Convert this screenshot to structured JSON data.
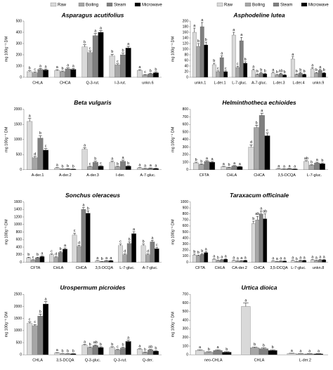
{
  "chart_data": [
    {
      "type": "bar",
      "title": "Asparagus acutifolius",
      "ylabel": "mg 100g⁻¹ DM",
      "legend": "top-right",
      "categories": [
        "CHLA",
        "CHCA",
        "Q-3-rut.",
        "I-3-rut.",
        "unkn.6"
      ],
      "ylim": [
        0,
        500
      ],
      "yticks": [
        0,
        100,
        200,
        300,
        400,
        500
      ],
      "series": [
        {
          "name": "Raw",
          "color": "#d9d9d9",
          "values": [
            50,
            60,
            270,
            190,
            60
          ],
          "errors": [
            8,
            8,
            20,
            15,
            8
          ],
          "letters": [
            "b",
            "a",
            "b",
            "b",
            "a"
          ]
        },
        {
          "name": "Boiling",
          "color": "#a6a6a6",
          "values": [
            40,
            50,
            220,
            110,
            20
          ],
          "errors": [
            6,
            6,
            15,
            10,
            4
          ],
          "letters": [
            "c",
            "b",
            "c",
            "c",
            "c"
          ]
        },
        {
          "name": "Steam",
          "color": "#7f7f7f",
          "values": [
            70,
            75,
            370,
            200,
            30
          ],
          "errors": [
            8,
            8,
            20,
            15,
            5
          ],
          "letters": [
            "a",
            "a",
            "a",
            "b",
            "b"
          ]
        },
        {
          "name": "Microwave",
          "color": "#000000",
          "values": [
            65,
            70,
            400,
            260,
            40
          ],
          "errors": [
            8,
            8,
            15,
            15,
            6
          ],
          "letters": [
            "a",
            "a",
            "a",
            "a",
            "b"
          ]
        }
      ]
    },
    {
      "type": "bar",
      "title": "Asphodeline lutea",
      "ylabel": "mg 100g⁻¹ DM",
      "legend": "top-right",
      "categories": [
        "unkn.1",
        "L-der.1",
        "L-7-gluc.",
        "A-7-gluc.",
        "L-der.3",
        "L-der.4",
        "unkn.9"
      ],
      "ylim": [
        0,
        200
      ],
      "yticks": [
        0,
        20,
        40,
        60,
        80,
        100,
        120,
        140,
        160,
        180,
        200
      ],
      "series": [
        {
          "name": "Raw",
          "color": "#d9d9d9",
          "values": [
            160,
            45,
            150,
            25,
            15,
            65,
            30
          ],
          "errors": [
            15,
            5,
            10,
            4,
            3,
            8,
            4
          ],
          "letters": [
            "a",
            "b",
            "a",
            "a",
            "a",
            "a",
            "a"
          ]
        },
        {
          "name": "Boiling",
          "color": "#a6a6a6",
          "values": [
            110,
            20,
            35,
            10,
            8,
            10,
            15
          ],
          "errors": [
            10,
            3,
            4,
            2,
            2,
            2,
            2
          ],
          "letters": [
            "b",
            "c",
            "c",
            "b",
            "b",
            "b",
            "b"
          ]
        },
        {
          "name": "Steam",
          "color": "#7f7f7f",
          "values": [
            180,
            70,
            130,
            15,
            12,
            15,
            25
          ],
          "errors": [
            15,
            6,
            12,
            3,
            2,
            3,
            3
          ],
          "letters": [
            "a",
            "a",
            "a",
            "b",
            "ab",
            "b",
            "a"
          ]
        },
        {
          "name": "Microwave",
          "color": "#000000",
          "values": [
            115,
            20,
            50,
            12,
            8,
            10,
            15
          ],
          "errors": [
            10,
            3,
            5,
            2,
            2,
            2,
            2
          ],
          "letters": [
            "b",
            "c",
            "b",
            "b",
            "b",
            "b",
            "b"
          ]
        }
      ]
    },
    {
      "type": "bar",
      "title": "Beta vulgaris",
      "ylabel": "mg 100g⁻¹ DM",
      "categories": [
        "A-der.1",
        "A-der.2",
        "A-der.3",
        "I-der.",
        "A-7-gluc."
      ],
      "ylim": [
        0,
        2000
      ],
      "yticks": [
        0,
        500,
        1000,
        1500,
        2000
      ],
      "series": [
        {
          "color": "#d9d9d9",
          "values": [
            1600,
            60,
            680,
            250,
            60
          ],
          "errors": [
            100,
            10,
            50,
            30,
            10
          ],
          "letters": [
            "a",
            "a",
            "a",
            "a",
            "a"
          ]
        },
        {
          "color": "#a6a6a6",
          "values": [
            400,
            20,
            100,
            100,
            40
          ],
          "errors": [
            40,
            5,
            15,
            15,
            8
          ],
          "letters": [
            "d",
            "b",
            "c",
            "b",
            "a"
          ]
        },
        {
          "color": "#7f7f7f",
          "values": [
            1050,
            30,
            250,
            280,
            50
          ],
          "errors": [
            80,
            8,
            30,
            40,
            10
          ],
          "letters": [
            "b",
            "b",
            "b",
            "a",
            "a"
          ]
        },
        {
          "color": "#000000",
          "values": [
            650,
            20,
            120,
            120,
            40
          ],
          "errors": [
            50,
            5,
            15,
            15,
            8
          ],
          "letters": [
            "c",
            "b",
            "c",
            "b",
            "a"
          ]
        }
      ]
    },
    {
      "type": "bar",
      "title": "Helminthotheca echioides",
      "ylabel": "mg 100g⁻¹ DM",
      "categories": [
        "CFTA",
        "CHLA",
        "CHCA",
        "3,5-DCQA",
        "L-7-gluc."
      ],
      "ylim": [
        0,
        800
      ],
      "yticks": [
        0,
        100,
        200,
        300,
        400,
        500,
        600,
        700,
        800
      ],
      "series": [
        {
          "color": "#d9d9d9",
          "values": [
            90,
            40,
            300,
            15,
            110
          ],
          "errors": [
            10,
            5,
            30,
            3,
            10
          ],
          "letters": [
            "b",
            "a",
            "d",
            "a",
            "ab"
          ]
        },
        {
          "color": "#a6a6a6",
          "values": [
            70,
            30,
            560,
            10,
            60
          ],
          "errors": [
            8,
            4,
            30,
            2,
            8
          ],
          "letters": [
            "b",
            "b",
            "b",
            "a",
            "b"
          ]
        },
        {
          "color": "#7f7f7f",
          "values": [
            110,
            50,
            720,
            15,
            90
          ],
          "errors": [
            10,
            5,
            30,
            3,
            10
          ],
          "letters": [
            "a",
            "a",
            "a",
            "a",
            "a"
          ]
        },
        {
          "color": "#000000",
          "values": [
            100,
            40,
            450,
            10,
            80
          ],
          "errors": [
            10,
            5,
            40,
            2,
            10
          ],
          "letters": [
            "a",
            "a",
            "c",
            "a",
            "b"
          ]
        }
      ]
    },
    {
      "type": "bar",
      "title": "Sonchus oleraceus",
      "ylabel": "mg 100g⁻¹ DM",
      "categories": [
        "CFTA",
        "CHLA",
        "CHCA",
        "3,5-DCQA",
        "L-7-gluc.",
        "A-7-gluc."
      ],
      "ylim": [
        0,
        1600
      ],
      "yticks": [
        0,
        200,
        400,
        600,
        800,
        1000,
        1200,
        1400,
        1600
      ],
      "series": [
        {
          "color": "#d9d9d9",
          "values": [
            120,
            200,
            720,
            40,
            440,
            440
          ],
          "errors": [
            15,
            20,
            50,
            8,
            40,
            40
          ],
          "letters": [
            "b",
            "c",
            "c",
            "a",
            "c",
            "b"
          ]
        },
        {
          "color": "#a6a6a6",
          "values": [
            60,
            130,
            420,
            20,
            200,
            200
          ],
          "errors": [
            8,
            15,
            30,
            4,
            20,
            20
          ],
          "letters": [
            "c",
            "d",
            "d",
            "b",
            "d",
            "d"
          ]
        },
        {
          "color": "#7f7f7f",
          "values": [
            120,
            260,
            1400,
            40,
            500,
            540
          ],
          "errors": [
            15,
            25,
            50,
            8,
            40,
            40
          ],
          "letters": [
            "b",
            "b",
            "a",
            "a",
            "b",
            "a"
          ]
        },
        {
          "color": "#000000",
          "values": [
            150,
            350,
            1300,
            40,
            760,
            360
          ],
          "errors": [
            15,
            30,
            60,
            8,
            50,
            30
          ],
          "letters": [
            "a",
            "a",
            "b",
            "a",
            "a",
            "c"
          ]
        }
      ]
    },
    {
      "type": "bar",
      "title": "Taraxacum officinale",
      "ylabel": "mg 100g⁻¹ DM",
      "categories": [
        "CFTA",
        "CHLA",
        "CA-der.2",
        "CHCA",
        "3,5-DCQA",
        "L-7-gluc.",
        "unkn.8"
      ],
      "ylim": [
        0,
        1000
      ],
      "yticks": [
        0,
        100,
        200,
        300,
        400,
        500,
        600,
        700,
        800,
        900,
        1000
      ],
      "series": [
        {
          "color": "#d9d9d9",
          "values": [
            120,
            50,
            30,
            640,
            20,
            30,
            40
          ],
          "errors": [
            15,
            5,
            4,
            40,
            3,
            4,
            5
          ],
          "letters": [
            "b",
            "a",
            "a",
            "b",
            "a",
            "a",
            "a"
          ]
        },
        {
          "color": "#a6a6a6",
          "values": [
            110,
            30,
            20,
            700,
            15,
            10,
            30
          ],
          "errors": [
            10,
            4,
            3,
            60,
            2,
            2,
            4
          ],
          "letters": [
            "b",
            "b",
            "a",
            "ab",
            "a",
            "b",
            "a"
          ]
        },
        {
          "color": "#7f7f7f",
          "values": [
            130,
            40,
            25,
            800,
            20,
            30,
            40
          ],
          "errors": [
            15,
            5,
            3,
            50,
            3,
            4,
            5
          ],
          "letters": [
            "b",
            "a",
            "a",
            "a",
            "a",
            "a",
            "a"
          ]
        },
        {
          "color": "#000000",
          "values": [
            160,
            50,
            30,
            720,
            20,
            30,
            40
          ],
          "errors": [
            15,
            5,
            4,
            80,
            3,
            4,
            5
          ],
          "letters": [
            "a",
            "a",
            "a",
            "ab",
            "a",
            "a",
            "a"
          ]
        }
      ]
    },
    {
      "type": "bar",
      "title": "Urospermum picroides",
      "ylabel": "mg 100g⁻¹ DM",
      "categories": [
        "CHLA",
        "3,5-DCQA",
        "Q-3-gluc.",
        "Q-3-rut.",
        "Q-der."
      ],
      "ylim": [
        0,
        2500
      ],
      "yticks": [
        0,
        500,
        1000,
        1500,
        2000,
        2500
      ],
      "series": [
        {
          "color": "#d9d9d9",
          "values": [
            1300,
            80,
            400,
            300,
            230
          ],
          "errors": [
            60,
            10,
            30,
            30,
            20
          ],
          "letters": [
            "c",
            "a",
            "a",
            "b",
            "a"
          ]
        },
        {
          "color": "#a6a6a6",
          "values": [
            1200,
            40,
            300,
            200,
            100
          ],
          "errors": [
            50,
            5,
            25,
            20,
            10
          ],
          "letters": [
            "c",
            "b",
            "b",
            "c",
            "b"
          ]
        },
        {
          "color": "#7f7f7f",
          "values": [
            1600,
            40,
            380,
            280,
            200
          ],
          "errors": [
            80,
            5,
            30,
            30,
            20
          ],
          "letters": [
            "b",
            "b",
            "ab",
            "b",
            "ab"
          ]
        },
        {
          "color": "#000000",
          "values": [
            2100,
            40,
            300,
            550,
            150
          ],
          "errors": [
            100,
            5,
            30,
            50,
            15
          ],
          "letters": [
            "a",
            "b",
            "b",
            "a",
            "b"
          ]
        }
      ]
    },
    {
      "type": "bar",
      "title": "Urtica dioica",
      "ylabel": "mg 100g⁻¹ DM",
      "categories": [
        "neo-CHLA",
        "CHLA",
        "L-der.2"
      ],
      "ylim": [
        0,
        700
      ],
      "yticks": [
        0,
        100,
        200,
        300,
        400,
        500,
        600,
        700
      ],
      "series": [
        {
          "color": "#d9d9d9",
          "values": [
            50,
            560,
            15
          ],
          "errors": [
            8,
            40,
            3
          ],
          "letters": [
            "a",
            "a",
            "a"
          ]
        },
        {
          "color": "#a6a6a6",
          "values": [
            30,
            80,
            10
          ],
          "errors": [
            5,
            10,
            2
          ],
          "letters": [
            "b",
            "b",
            "a"
          ]
        },
        {
          "color": "#7f7f7f",
          "values": [
            50,
            70,
            10
          ],
          "errors": [
            8,
            10,
            2
          ],
          "letters": [
            "a",
            "b",
            "a"
          ]
        },
        {
          "color": "#000000",
          "values": [
            30,
            50,
            10
          ],
          "errors": [
            5,
            8,
            2
          ],
          "letters": [
            "b",
            "b",
            "a"
          ]
        }
      ]
    }
  ]
}
